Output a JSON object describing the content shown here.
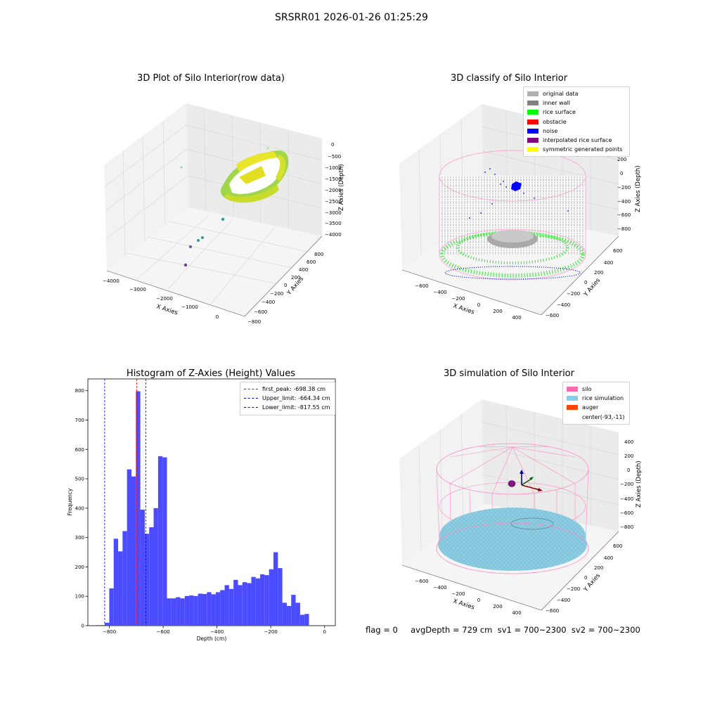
{
  "figure": {
    "title": "SRSRR01 2026-01-26 01:25:29",
    "footer": "flag = 0     avgDepth = 729 cm  sv1 = 700~2300  sv2 = 700~2300"
  },
  "panels": {
    "raw3d": {
      "title": "3D Plot of Silo Interior(row data)",
      "xlabel": "X Axies",
      "ylabel": "Y Axies",
      "zlabel": "Z Axies (Depth)",
      "xticks": [
        "−4000",
        "−3000",
        "−2000",
        "−1000",
        "0"
      ],
      "yticks": [
        "800",
        "600",
        "400",
        "200",
        "0",
        "−200",
        "−400",
        "−600",
        "−800"
      ],
      "zticks": [
        "0",
        "−500",
        "−1000",
        "−1500",
        "−2000",
        "−2500",
        "−3000",
        "−3500",
        "−4000"
      ]
    },
    "classify3d": {
      "title": "3D classify of Silo Interior",
      "xlabel": "X Axies",
      "ylabel": "Y Axies",
      "zlabel": "Z Axies (Depth)",
      "xticks": [
        "−600",
        "−400",
        "−200",
        "0",
        "200",
        "400"
      ],
      "yticks": [
        "600",
        "400",
        "200",
        "0",
        "−200",
        "−400",
        "−600"
      ],
      "zticks": [
        "200",
        "0",
        "−200",
        "−400",
        "−600",
        "−800"
      ],
      "legend": [
        {
          "label": "original data",
          "color": "#b0b0b0"
        },
        {
          "label": "inner wall",
          "color": "#808080"
        },
        {
          "label": "rice surface",
          "color": "#00ff00"
        },
        {
          "label": "obstacle",
          "color": "#ff0000"
        },
        {
          "label": "noise",
          "color": "#0000ff"
        },
        {
          "label": "interpolated rice surface",
          "color": "#800080"
        },
        {
          "label": "symmetric generated points",
          "color": "#ffff00"
        }
      ]
    },
    "simulation3d": {
      "title": "3D simulation of Silo Interior",
      "xlabel": "X Axies",
      "ylabel": "Y Axies",
      "zlabel": "Z Axies (Depth)",
      "xticks": [
        "−600",
        "−400",
        "−200",
        "0",
        "200",
        "400"
      ],
      "yticks": [
        "600",
        "400",
        "200",
        "0",
        "−200",
        "−400",
        "−600"
      ],
      "zticks": [
        "400",
        "200",
        "0",
        "−200",
        "−400",
        "−600",
        "−800"
      ],
      "legend": [
        {
          "label": "silo",
          "color": "#ff69b4"
        },
        {
          "label": "rice simulation",
          "color": "#87ceeb"
        },
        {
          "label": "auger",
          "color": "#ff4500"
        },
        {
          "label": "center(-93,-11)",
          "color": ""
        }
      ]
    }
  },
  "chart_data": {
    "type": "bar",
    "title": "Histogram of Z-Axies (Height) Values",
    "xlabel": "Depth (cm)",
    "ylabel": "Frequency",
    "bar_color": "#4b4bff",
    "xlim": [
      -880,
      40
    ],
    "ylim": [
      0,
      840
    ],
    "xticks": [
      -800,
      -600,
      -400,
      -200,
      0
    ],
    "xtick_labels": [
      "−800",
      "−600",
      "−400",
      "−200",
      "0"
    ],
    "yticks": [
      0,
      100,
      200,
      300,
      400,
      500,
      600,
      700,
      800
    ],
    "bin_width": 16.5,
    "bin_starts": [
      -850,
      -833.5,
      -817,
      -800.5,
      -784,
      -767.5,
      -751,
      -734.5,
      -718,
      -701.5,
      -685,
      -668.5,
      -652,
      -635.5,
      -619,
      -602.5,
      -586,
      -569.5,
      -553,
      -536.5,
      -520,
      -503.5,
      -487,
      -470.5,
      -454,
      -437.5,
      -421,
      -404.5,
      -388,
      -371.5,
      -355,
      -338.5,
      -322,
      -305.5,
      -289,
      -272.5,
      -256,
      -239.5,
      -223,
      -206.5,
      -190,
      -173.5,
      -157,
      -140.5,
      -124,
      -107.5,
      -91,
      -74.5,
      -58,
      -41.5,
      -25,
      -8.5
    ],
    "values": [
      2,
      2,
      10,
      127,
      296,
      253,
      322,
      532,
      508,
      798,
      395,
      313,
      335,
      400,
      577,
      573,
      93,
      93,
      97,
      93,
      101,
      103,
      101,
      109,
      108,
      114,
      107,
      114,
      121,
      138,
      125,
      156,
      138,
      148,
      145,
      166,
      161,
      175,
      172,
      192,
      250,
      196,
      78,
      67,
      105,
      78,
      37,
      40,
      0,
      0,
      0,
      0
    ],
    "lines": [
      {
        "label": "first_peak: -698.38 cm",
        "x": -698.38,
        "color": "#ff0000"
      },
      {
        "label": "Upper_limit: -664.34 cm",
        "x": -664.34,
        "color": "#0000ff"
      },
      {
        "label": "Lower_limit: -817.55 cm",
        "x": -817.55,
        "color": "#0000ff"
      }
    ]
  }
}
